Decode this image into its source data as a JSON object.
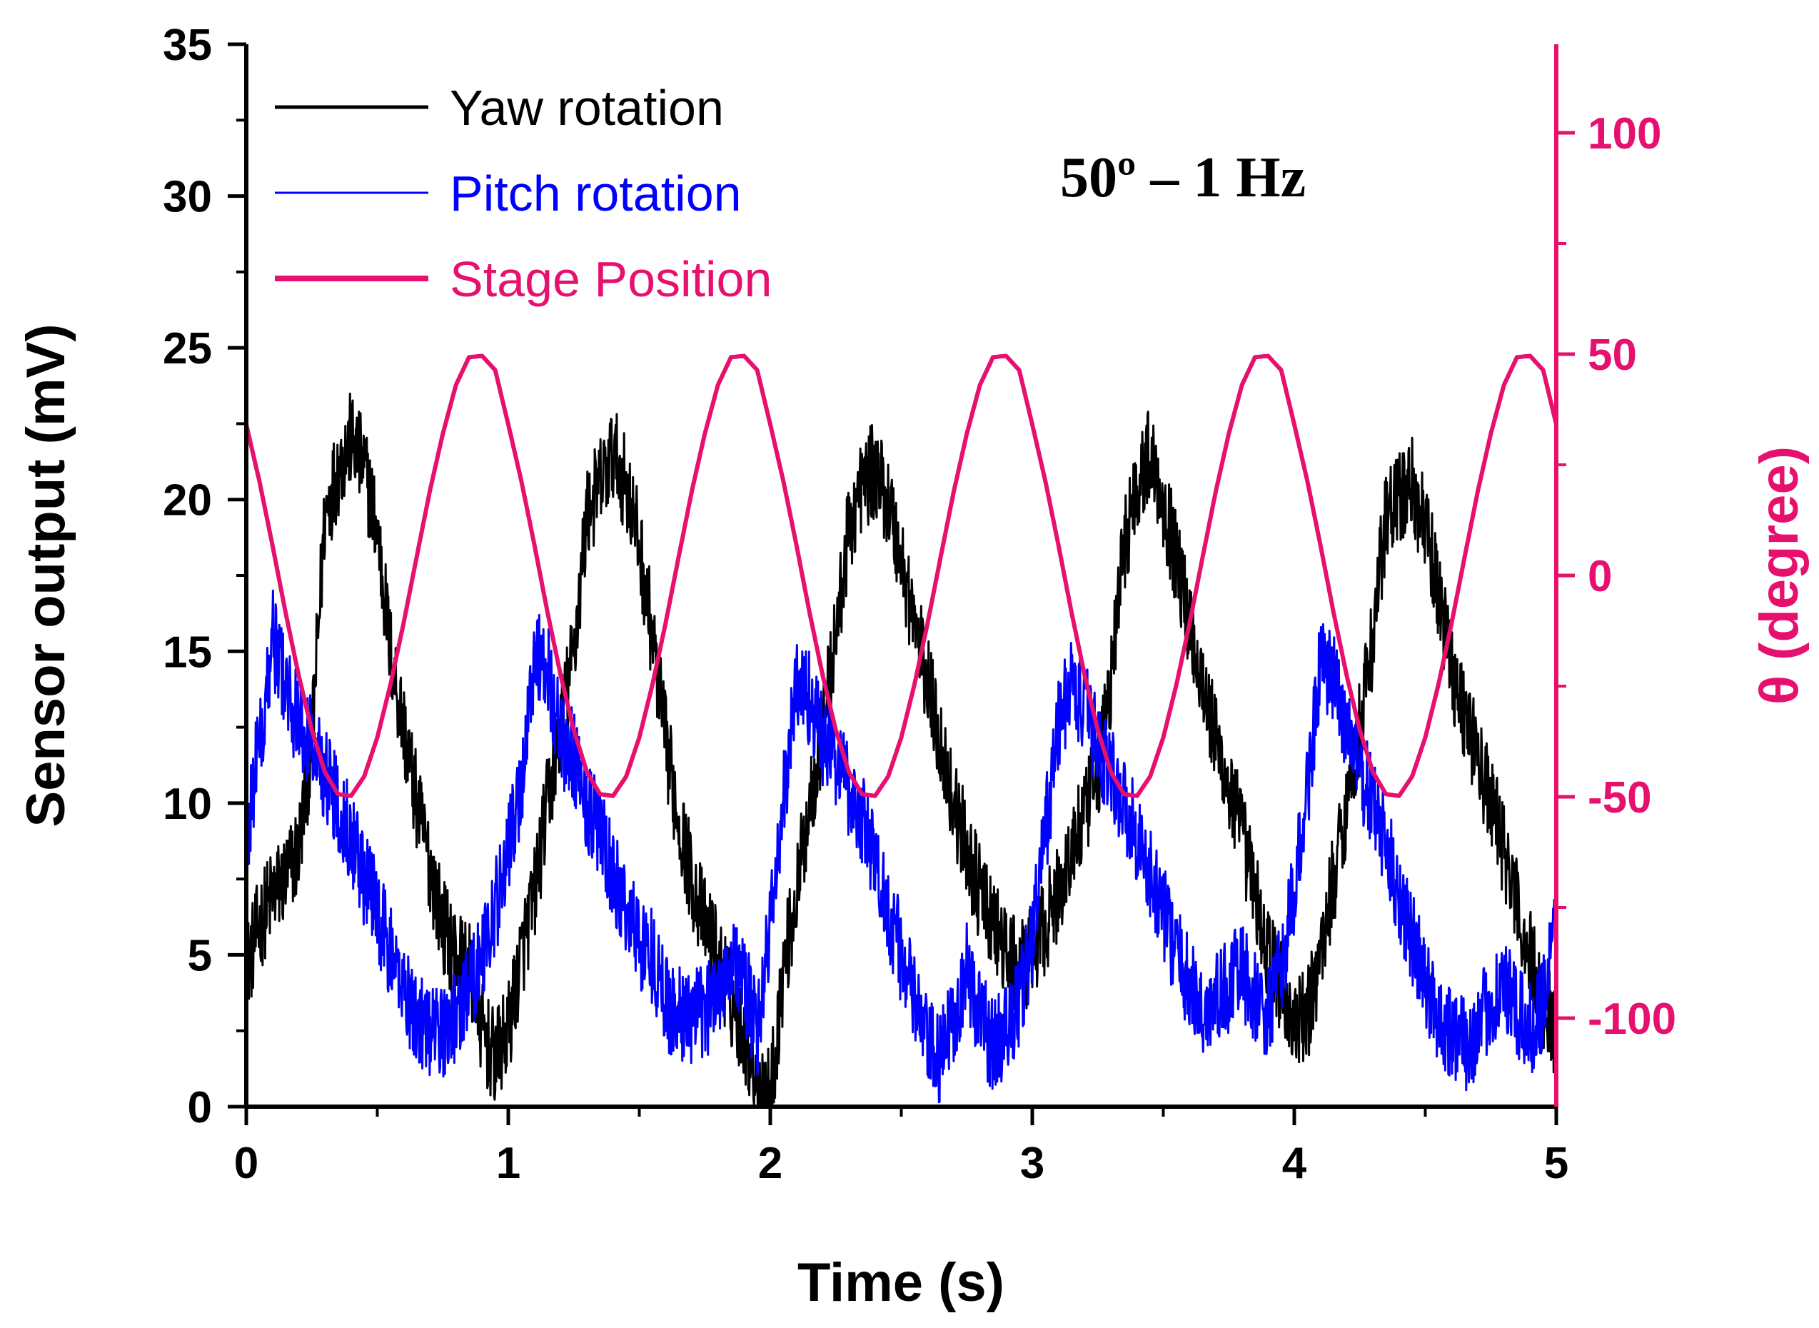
{
  "chart_data": {
    "type": "line",
    "annotation": "50º – 1 Hz",
    "xlabel": "Time (s)",
    "ylabel": "Sensor output (mV)",
    "y2label": "θ (degree)",
    "xlim": [
      0,
      5
    ],
    "ylim": [
      0,
      35
    ],
    "y2lim": [
      -120,
      120
    ],
    "xticks": [
      "0",
      "1",
      "2",
      "3",
      "4",
      "5"
    ],
    "yticks": [
      "0",
      "5",
      "10",
      "15",
      "20",
      "25",
      "30",
      "35"
    ],
    "y2ticks": [
      "-100",
      "-50",
      "0",
      "50",
      "100"
    ],
    "legend_position": "top-left",
    "colors": {
      "yaw": "#000000",
      "pitch": "#0000ff",
      "stage": "#e6106e",
      "axis": "#000000",
      "right_axis": "#e6106e"
    },
    "series": [
      {
        "name": "Yaw rotation",
        "axis": "left",
        "x": [
          0,
          0.05,
          0.1,
          0.15,
          0.2,
          0.25,
          0.3,
          0.35,
          0.4,
          0.45,
          0.5,
          0.55,
          0.6,
          0.65,
          0.7,
          0.75,
          0.8,
          0.85,
          0.9,
          0.95,
          1.0,
          1.05,
          1.1,
          1.15,
          1.2,
          1.25,
          1.3,
          1.35,
          1.4,
          1.45,
          1.5,
          1.55,
          1.6,
          1.65,
          1.7,
          1.75,
          1.8,
          1.85,
          1.9,
          1.95,
          2.0,
          2.05,
          2.1,
          2.15,
          2.2,
          2.25,
          2.3,
          2.35,
          2.4,
          2.45,
          2.5,
          2.55,
          2.6,
          2.65,
          2.7,
          2.75,
          2.8,
          2.85,
          2.9,
          2.95,
          3.0,
          3.05,
          3.1,
          3.15,
          3.2,
          3.25,
          3.3,
          3.35,
          3.4,
          3.45,
          3.5,
          3.55,
          3.6,
          3.65,
          3.7,
          3.75,
          3.8,
          3.85,
          3.9,
          3.95,
          4.0,
          4.05,
          4.1,
          4.15,
          4.2,
          4.25,
          4.3,
          4.35,
          4.4,
          4.45,
          4.5,
          4.55,
          4.6,
          4.65,
          4.7,
          4.75,
          4.8,
          4.85,
          4.9,
          4.95,
          5.0
        ],
        "y": [
          4.5,
          6.0,
          7.0,
          7.5,
          8.5,
          12.0,
          19.5,
          21.0,
          22.0,
          21.0,
          19.0,
          15.0,
          12.5,
          10.0,
          8.0,
          6.0,
          5.0,
          4.5,
          2.5,
          1.5,
          2.5,
          5.0,
          7.0,
          10.0,
          12.5,
          15.0,
          19.5,
          20.5,
          21.5,
          20.5,
          18.5,
          15.5,
          12.0,
          9.5,
          7.5,
          6.0,
          5.0,
          3.5,
          2.5,
          1.0,
          0.3,
          4.5,
          7.0,
          10.0,
          12.5,
          15.5,
          19.0,
          20.5,
          21.0,
          20.0,
          18.0,
          16.0,
          14.0,
          12.0,
          10.0,
          8.5,
          7.0,
          6.0,
          5.0,
          4.5,
          5.0,
          6.0,
          7.0,
          8.5,
          9.5,
          11.0,
          14.0,
          18.5,
          20.5,
          21.5,
          20.0,
          18.0,
          16.0,
          14.0,
          12.0,
          10.5,
          9.0,
          7.0,
          5.0,
          4.0,
          2.5,
          3.0,
          5.0,
          7.5,
          10.0,
          12.5,
          15.5,
          19.5,
          20.0,
          20.5,
          19.0,
          17.0,
          14.5,
          13.0,
          11.5,
          10.0,
          8.5,
          6.5,
          5.0,
          3.5,
          2.5
        ]
      },
      {
        "name": "Pitch rotation",
        "axis": "left",
        "x": [
          0,
          0.05,
          0.1,
          0.15,
          0.2,
          0.25,
          0.3,
          0.35,
          0.4,
          0.45,
          0.5,
          0.55,
          0.6,
          0.65,
          0.7,
          0.75,
          0.8,
          0.85,
          0.9,
          0.95,
          1.0,
          1.05,
          1.1,
          1.15,
          1.2,
          1.25,
          1.3,
          1.35,
          1.4,
          1.45,
          1.5,
          1.55,
          1.6,
          1.65,
          1.7,
          1.75,
          1.8,
          1.85,
          1.9,
          1.95,
          2.0,
          2.05,
          2.1,
          2.15,
          2.2,
          2.25,
          2.3,
          2.35,
          2.4,
          2.45,
          2.5,
          2.55,
          2.6,
          2.65,
          2.7,
          2.75,
          2.8,
          2.85,
          2.9,
          2.95,
          3.0,
          3.05,
          3.1,
          3.15,
          3.2,
          3.25,
          3.3,
          3.35,
          3.4,
          3.45,
          3.5,
          3.55,
          3.6,
          3.65,
          3.7,
          3.75,
          3.8,
          3.85,
          3.9,
          3.95,
          4.0,
          4.05,
          4.1,
          4.15,
          4.2,
          4.25,
          4.3,
          4.35,
          4.4,
          4.45,
          4.5,
          4.55,
          4.6,
          4.65,
          4.7,
          4.75,
          4.8,
          4.85,
          4.9,
          4.95,
          5.0
        ],
        "y": [
          9.0,
          12.0,
          15.5,
          14.0,
          12.5,
          12.0,
          11.0,
          10.0,
          9.0,
          7.5,
          6.5,
          5.0,
          4.0,
          3.0,
          2.5,
          2.5,
          3.0,
          4.0,
          5.0,
          6.5,
          8.5,
          10.5,
          15.0,
          14.5,
          12.0,
          11.5,
          10.0,
          9.0,
          7.5,
          6.5,
          5.5,
          5.0,
          3.5,
          3.0,
          3.0,
          3.0,
          4.0,
          5.0,
          4.0,
          2.5,
          6.0,
          10.0,
          14.0,
          13.5,
          12.0,
          11.5,
          10.5,
          9.5,
          8.0,
          6.5,
          5.0,
          3.5,
          2.0,
          1.5,
          3.0,
          4.5,
          3.0,
          2.0,
          2.5,
          3.5,
          5.5,
          9.0,
          12.5,
          14.0,
          13.0,
          12.0,
          11.0,
          10.0,
          9.0,
          7.5,
          6.5,
          5.0,
          4.0,
          3.0,
          3.5,
          4.0,
          4.5,
          3.5,
          3.0,
          4.5,
          7.0,
          10.5,
          14.5,
          14.0,
          12.5,
          11.0,
          10.0,
          8.5,
          7.0,
          5.5,
          4.0,
          3.0,
          2.5,
          2.0,
          2.5,
          3.5,
          4.0,
          3.0,
          2.5,
          3.5,
          6.0
        ]
      },
      {
        "name": "Stage Position",
        "axis": "right",
        "function": "50 * cos(2 * pi * (t - 0.87))",
        "amplitude_deg": 50,
        "frequency_hz": 1,
        "peak_times_s": [
          0.87,
          1.87,
          2.87,
          3.87,
          4.87
        ],
        "trough_times_s": [
          0.37,
          1.37,
          2.37,
          3.37,
          4.37
        ],
        "x": [
          0,
          0.05,
          0.1,
          0.15,
          0.2,
          0.25,
          0.3,
          0.35,
          0.4,
          0.45,
          0.5,
          0.55,
          0.6,
          0.65,
          0.7,
          0.75,
          0.8,
          0.85,
          0.9,
          0.95,
          1.0,
          1.05,
          1.1,
          1.15,
          1.2,
          1.25,
          1.3,
          1.35,
          1.4,
          1.45,
          1.5,
          1.55,
          1.6,
          1.65,
          1.7,
          1.75,
          1.8,
          1.85,
          1.9,
          1.95,
          2.0,
          2.05,
          2.1,
          2.15,
          2.2,
          2.25,
          2.3,
          2.35,
          2.4,
          2.45,
          2.5,
          2.55,
          2.6,
          2.65,
          2.7,
          2.75,
          2.8,
          2.85,
          2.9,
          2.95,
          3.0,
          3.05,
          3.1,
          3.15,
          3.2,
          3.25,
          3.3,
          3.35,
          3.4,
          3.45,
          3.5,
          3.55,
          3.6,
          3.65,
          3.7,
          3.75,
          3.8,
          3.85,
          3.9,
          3.95,
          4.0,
          4.05,
          4.1,
          4.15,
          4.2,
          4.25,
          4.3,
          4.35,
          4.4,
          4.45,
          4.5,
          4.55,
          4.6,
          4.65,
          4.7,
          4.75,
          4.8,
          4.85,
          4.9,
          4.95,
          5.0
        ],
        "y": [
          34.1,
          21.3,
          6.8,
          -8.4,
          -22.6,
          -34.9,
          -44.4,
          -49.4,
          -49.8,
          -45.4,
          -36.6,
          -24.7,
          -10.9,
          4.1,
          18.9,
          32.0,
          43.0,
          49.3,
          49.6,
          46.4,
          34.1,
          21.3,
          6.8,
          -8.4,
          -22.6,
          -34.9,
          -44.4,
          -49.4,
          -49.8,
          -45.4,
          -36.6,
          -24.7,
          -10.9,
          4.1,
          18.9,
          32.0,
          43.0,
          49.3,
          49.6,
          46.4,
          34.1,
          21.3,
          6.8,
          -8.4,
          -22.6,
          -34.9,
          -44.4,
          -49.4,
          -49.8,
          -45.4,
          -36.6,
          -24.7,
          -10.9,
          4.1,
          18.9,
          32.0,
          43.0,
          49.3,
          49.6,
          46.4,
          34.1,
          21.3,
          6.8,
          -8.4,
          -22.6,
          -34.9,
          -44.4,
          -49.4,
          -49.8,
          -45.4,
          -36.6,
          -24.7,
          -10.9,
          4.1,
          18.9,
          32.0,
          43.0,
          49.3,
          49.6,
          46.4,
          34.1,
          21.3,
          6.8,
          -8.4,
          -22.6,
          -34.9,
          -44.4,
          -49.4,
          -49.8,
          -45.4,
          -36.6,
          -24.7,
          -10.9,
          4.1,
          18.9,
          32.0,
          43.0,
          49.3,
          49.6,
          46.4,
          34.1
        ]
      }
    ]
  }
}
